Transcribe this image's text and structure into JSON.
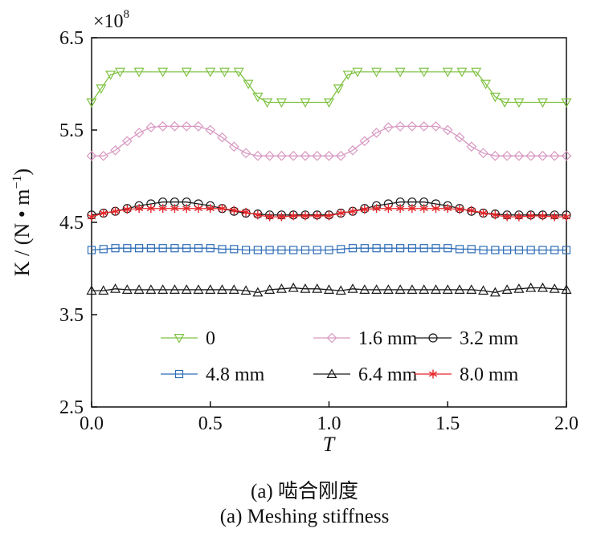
{
  "chart_data": {
    "type": "line",
    "xlabel": "T",
    "ylabel": "K / (N • m",
    "ylabel_superscript": "−1",
    "ylabel_suffix": ")",
    "y_multiplier": "×10",
    "y_multiplier_exp": "8",
    "xlim": [
      0,
      2.0
    ],
    "ylim": [
      2.5,
      6.5
    ],
    "xticks": [
      0,
      0.5,
      1.0,
      1.5,
      2.0
    ],
    "xtick_labels": [
      "0.0",
      "0.5",
      "1.0",
      "1.5",
      "2.0"
    ],
    "yticks": [
      2.5,
      3.5,
      4.5,
      5.5,
      6.5
    ],
    "ytick_labels": [
      "2.5",
      "3.5",
      "4.5",
      "5.5",
      "6.5"
    ],
    "legend_placement": "bottom-center",
    "legend_columns": 3,
    "series": [
      {
        "name": "0",
        "color": "#7fc241",
        "marker": "triangle-down",
        "x": [
          0.0,
          0.04,
          0.08,
          0.12,
          0.2,
          0.3,
          0.4,
          0.5,
          0.56,
          0.62,
          0.66,
          0.7,
          0.74,
          0.8,
          0.9,
          1.0,
          1.04,
          1.08,
          1.12,
          1.2,
          1.3,
          1.4,
          1.5,
          1.56,
          1.62,
          1.66,
          1.7,
          1.74,
          1.8,
          1.9,
          2.0
        ],
        "y": [
          5.8,
          5.95,
          6.1,
          6.13,
          6.13,
          6.13,
          6.13,
          6.13,
          6.13,
          6.13,
          6.0,
          5.86,
          5.8,
          5.8,
          5.8,
          5.8,
          5.95,
          6.1,
          6.13,
          6.13,
          6.13,
          6.13,
          6.13,
          6.13,
          6.13,
          6.0,
          5.86,
          5.8,
          5.8,
          5.8,
          5.8
        ]
      },
      {
        "name": "1.6 mm",
        "color": "#d899c2",
        "marker": "diamond",
        "x": [
          0.0,
          0.05,
          0.1,
          0.15,
          0.2,
          0.25,
          0.3,
          0.35,
          0.4,
          0.45,
          0.5,
          0.55,
          0.6,
          0.65,
          0.7,
          0.75,
          0.8,
          0.85,
          0.9,
          0.95,
          1.0,
          1.05,
          1.1,
          1.15,
          1.2,
          1.25,
          1.3,
          1.35,
          1.4,
          1.45,
          1.5,
          1.55,
          1.6,
          1.65,
          1.7,
          1.75,
          1.8,
          1.85,
          1.9,
          1.95,
          2.0
        ],
        "y": [
          5.22,
          5.22,
          5.28,
          5.38,
          5.47,
          5.53,
          5.54,
          5.54,
          5.54,
          5.54,
          5.5,
          5.42,
          5.32,
          5.25,
          5.22,
          5.22,
          5.22,
          5.22,
          5.22,
          5.22,
          5.22,
          5.22,
          5.28,
          5.38,
          5.47,
          5.53,
          5.54,
          5.54,
          5.54,
          5.54,
          5.5,
          5.42,
          5.32,
          5.25,
          5.22,
          5.22,
          5.22,
          5.22,
          5.22,
          5.22,
          5.22
        ]
      },
      {
        "name": "3.2 mm",
        "color": "#1a1a1a",
        "marker": "circle",
        "x": [
          0.0,
          0.05,
          0.1,
          0.15,
          0.2,
          0.25,
          0.3,
          0.35,
          0.4,
          0.45,
          0.5,
          0.55,
          0.6,
          0.65,
          0.7,
          0.75,
          0.8,
          0.85,
          0.9,
          0.95,
          1.0,
          1.05,
          1.1,
          1.15,
          1.2,
          1.25,
          1.3,
          1.35,
          1.4,
          1.45,
          1.5,
          1.55,
          1.6,
          1.65,
          1.7,
          1.75,
          1.8,
          1.85,
          1.9,
          1.95,
          2.0
        ],
        "y": [
          4.58,
          4.6,
          4.62,
          4.65,
          4.68,
          4.7,
          4.72,
          4.72,
          4.72,
          4.7,
          4.68,
          4.65,
          4.62,
          4.6,
          4.59,
          4.58,
          4.58,
          4.58,
          4.58,
          4.58,
          4.58,
          4.6,
          4.62,
          4.65,
          4.68,
          4.7,
          4.72,
          4.72,
          4.72,
          4.7,
          4.68,
          4.65,
          4.62,
          4.6,
          4.59,
          4.58,
          4.58,
          4.58,
          4.58,
          4.58,
          4.58
        ]
      },
      {
        "name": "4.8 mm",
        "color": "#2e6db8",
        "marker": "square",
        "x": [
          0.0,
          0.05,
          0.1,
          0.15,
          0.2,
          0.25,
          0.3,
          0.35,
          0.4,
          0.45,
          0.5,
          0.55,
          0.6,
          0.65,
          0.7,
          0.75,
          0.8,
          0.85,
          0.9,
          0.95,
          1.0,
          1.05,
          1.1,
          1.15,
          1.2,
          1.25,
          1.3,
          1.35,
          1.4,
          1.45,
          1.5,
          1.55,
          1.6,
          1.65,
          1.7,
          1.75,
          1.8,
          1.85,
          1.9,
          1.95,
          2.0
        ],
        "y": [
          4.2,
          4.21,
          4.22,
          4.22,
          4.22,
          4.22,
          4.22,
          4.22,
          4.22,
          4.22,
          4.22,
          4.21,
          4.21,
          4.2,
          4.2,
          4.2,
          4.2,
          4.2,
          4.2,
          4.2,
          4.2,
          4.21,
          4.22,
          4.22,
          4.22,
          4.22,
          4.22,
          4.22,
          4.22,
          4.22,
          4.22,
          4.21,
          4.21,
          4.2,
          4.2,
          4.2,
          4.2,
          4.2,
          4.2,
          4.2,
          4.2
        ]
      },
      {
        "name": "6.4 mm",
        "color": "#1a1a1a",
        "marker": "triangle-up",
        "x": [
          0.0,
          0.05,
          0.1,
          0.15,
          0.2,
          0.25,
          0.3,
          0.35,
          0.4,
          0.45,
          0.5,
          0.55,
          0.6,
          0.65,
          0.7,
          0.75,
          0.8,
          0.85,
          0.9,
          0.95,
          1.0,
          1.05,
          1.1,
          1.15,
          1.2,
          1.25,
          1.3,
          1.35,
          1.4,
          1.45,
          1.5,
          1.55,
          1.6,
          1.65,
          1.7,
          1.75,
          1.8,
          1.85,
          1.9,
          1.95,
          2.0
        ],
        "y": [
          3.76,
          3.76,
          3.78,
          3.77,
          3.77,
          3.77,
          3.77,
          3.77,
          3.77,
          3.77,
          3.77,
          3.77,
          3.77,
          3.76,
          3.74,
          3.77,
          3.78,
          3.79,
          3.78,
          3.78,
          3.77,
          3.76,
          3.78,
          3.77,
          3.77,
          3.77,
          3.77,
          3.77,
          3.77,
          3.77,
          3.77,
          3.77,
          3.77,
          3.76,
          3.74,
          3.77,
          3.78,
          3.79,
          3.79,
          3.78,
          3.77
        ]
      },
      {
        "name": "8.0 mm",
        "color": "#e8262a",
        "marker": "star",
        "x": [
          0.0,
          0.05,
          0.1,
          0.15,
          0.2,
          0.25,
          0.3,
          0.35,
          0.4,
          0.45,
          0.5,
          0.55,
          0.6,
          0.65,
          0.7,
          0.75,
          0.8,
          0.85,
          0.9,
          0.95,
          1.0,
          1.05,
          1.1,
          1.15,
          1.2,
          1.25,
          1.3,
          1.35,
          1.4,
          1.45,
          1.5,
          1.55,
          1.6,
          1.65,
          1.7,
          1.75,
          1.8,
          1.85,
          1.9,
          1.95,
          2.0
        ],
        "y": [
          4.56,
          4.6,
          4.62,
          4.64,
          4.65,
          4.65,
          4.65,
          4.65,
          4.65,
          4.65,
          4.65,
          4.65,
          4.63,
          4.61,
          4.58,
          4.56,
          4.56,
          4.57,
          4.57,
          4.57,
          4.57,
          4.6,
          4.62,
          4.64,
          4.65,
          4.65,
          4.65,
          4.65,
          4.65,
          4.65,
          4.65,
          4.64,
          4.63,
          4.6,
          4.58,
          4.56,
          4.56,
          4.57,
          4.57,
          4.56,
          4.56
        ]
      }
    ]
  },
  "captions": {
    "cn": "(a) 啮合刚度",
    "en": "(a) Meshing stiffness"
  }
}
